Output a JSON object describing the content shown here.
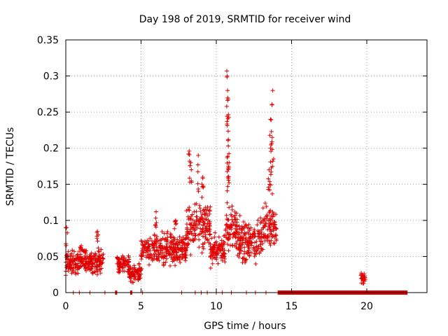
{
  "chart_data": {
    "type": "scatter",
    "title": "Day 198 of 2019, SRMTID for receiver wind",
    "xlabel": "GPS time / hours",
    "ylabel": "SRMTID / TECUs",
    "xlim": [
      0,
      24
    ],
    "ylim": [
      0,
      0.35
    ],
    "xticks": [
      0,
      5,
      10,
      15,
      20
    ],
    "yticks": [
      0,
      0.05,
      0.1,
      0.15,
      0.2,
      0.25,
      0.3,
      0.35
    ],
    "xtick_labels": [
      "0",
      "5",
      "10",
      "15",
      "20"
    ],
    "ytick_labels": [
      "0",
      "0.05",
      "0.1",
      "0.15",
      "0.2",
      "0.25",
      "0.3",
      "0.35"
    ],
    "grid": true,
    "marker": "+",
    "color": "#e00000",
    "series": [
      {
        "name": "SRMTID",
        "segments": [
          {
            "x_start": 0.0,
            "x_end": 2.5,
            "y_min": 0.02,
            "y_max": 0.065,
            "spikes": [
              [
                0.05,
                0.09
              ],
              [
                1.0,
                0.06
              ],
              [
                2.1,
                0.085
              ]
            ]
          },
          {
            "x_start": 3.4,
            "x_end": 4.2,
            "y_min": 0.02,
            "y_max": 0.06,
            "spikes": []
          },
          {
            "x_start": 4.2,
            "x_end": 5.0,
            "y_min": 0.008,
            "y_max": 0.045,
            "spikes": []
          },
          {
            "x_start": 5.0,
            "x_end": 8.0,
            "y_min": 0.03,
            "y_max": 0.09,
            "spikes": [
              [
                6.0,
                0.112
              ],
              [
                7.3,
                0.1
              ]
            ]
          },
          {
            "x_start": 8.0,
            "x_end": 9.6,
            "y_min": 0.04,
            "y_max": 0.14,
            "spikes": [
              [
                8.2,
                0.196
              ],
              [
                8.3,
                0.18
              ],
              [
                8.8,
                0.19
              ],
              [
                9.1,
                0.16
              ]
            ]
          },
          {
            "x_start": 9.6,
            "x_end": 10.6,
            "y_min": 0.03,
            "y_max": 0.09,
            "spikes": []
          },
          {
            "x_start": 10.6,
            "x_end": 11.4,
            "y_min": 0.04,
            "y_max": 0.14,
            "spikes": [
              [
                10.7,
                0.307
              ],
              [
                10.72,
                0.3
              ],
              [
                10.75,
                0.28
              ],
              [
                10.78,
                0.268
              ],
              [
                10.8,
                0.212
              ],
              [
                10.85,
                0.18
              ]
            ]
          },
          {
            "x_start": 11.4,
            "x_end": 13.1,
            "y_min": 0.03,
            "y_max": 0.115,
            "spikes": []
          },
          {
            "x_start": 13.1,
            "x_end": 14.0,
            "y_min": 0.05,
            "y_max": 0.13,
            "spikes": [
              [
                13.5,
                0.17
              ],
              [
                13.6,
                0.24
              ],
              [
                13.7,
                0.26
              ],
              [
                13.75,
                0.28
              ],
              [
                13.6,
                0.2
              ]
            ]
          },
          {
            "x_start": 19.6,
            "x_end": 19.9,
            "y_min": 0.008,
            "y_max": 0.03,
            "spikes": []
          }
        ],
        "zero_runs": [
          [
            0.5,
            0.5
          ],
          [
            0.9,
            0.9
          ],
          [
            1.6,
            1.6
          ],
          [
            2.6,
            2.6
          ],
          [
            3.3,
            3.4
          ],
          [
            4.3,
            4.4
          ],
          [
            5.1,
            5.1
          ],
          [
            7.7,
            7.7
          ],
          [
            8.6,
            8.6
          ],
          [
            9.0,
            9.0
          ],
          [
            9.4,
            9.4
          ],
          [
            10.0,
            10.0
          ],
          [
            10.4,
            10.4
          ],
          [
            11.0,
            11.0
          ],
          [
            12.0,
            12.0
          ],
          [
            12.6,
            12.6
          ],
          [
            13.3,
            13.3
          ],
          [
            14.1,
            22.7
          ]
        ]
      }
    ]
  }
}
